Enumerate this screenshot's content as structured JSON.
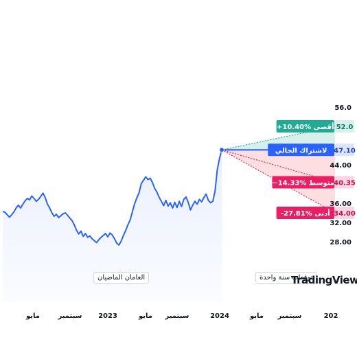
{
  "chart_data": {
    "type": "line",
    "y_ticks": [
      "56.0",
      "52.0",
      "47.10",
      "44.00",
      "40.35",
      "36.00",
      "34.00",
      "32.00",
      "28.00"
    ],
    "ylim": [
      24,
      57
    ],
    "x_ticks": [
      "مايو",
      "سبتمبر",
      "2023",
      "مايو",
      "سبتمبر",
      "2024",
      "مايو",
      "سبتمبر",
      "202"
    ],
    "period_labels": {
      "history": "العامان الماضيان",
      "forecast": "توقعات سنة واحدة"
    },
    "current": {
      "label": "لاشتراك الحالي",
      "value": 47.1,
      "display": "47.10"
    },
    "forecast": [
      {
        "name": "high",
        "label": "+10.40% أقصى",
        "value": 52.0,
        "display": "52.0",
        "color": "#22ab94"
      },
      {
        "name": "avg",
        "label": "−14.33% متوسط",
        "value": 40.35,
        "display": "40.35",
        "color": "#e91e63"
      },
      {
        "name": "low",
        "label": "-27.81% أدنى",
        "value": 34.0,
        "display": "34.00",
        "color": "#e91e63"
      }
    ],
    "series": [
      {
        "values": [
          34.3,
          34.1,
          33.6,
          33.1,
          33.6,
          34.2,
          35.0,
          35.6,
          35.0,
          35.8,
          36.5,
          37.0,
          36.7,
          37.5,
          37.0,
          36.4,
          36.8,
          37.4,
          38.1,
          37.2,
          35.8,
          35.0,
          34.0,
          33.3,
          33.7,
          33.0,
          33.4,
          33.8,
          34.0,
          33.5,
          32.9,
          32.4,
          31.5,
          30.4,
          29.6,
          30.2,
          29.1,
          29.7,
          28.9,
          29.2,
          28.6,
          28.2,
          27.8,
          28.4,
          28.9,
          29.3,
          29.7,
          29.0,
          29.8,
          29.4,
          28.6,
          27.7,
          27.3,
          28.1,
          29.3,
          30.3,
          31.5,
          32.5,
          34.2,
          35.9,
          37.1,
          38.2,
          40.1,
          40.8,
          41.5,
          40.9,
          41.2,
          40.3,
          39.1,
          38.3,
          37.2,
          36.4,
          35.5,
          36.6,
          35.4,
          36.1,
          35.0,
          36.2,
          35.1,
          36.4,
          35.3,
          36.8,
          37.3,
          36.2,
          34.6,
          35.6,
          36.4,
          35.8,
          36.8,
          36.3,
          37.2,
          37.9,
          36.6,
          36.1,
          36.4,
          38.5,
          43.0,
          45.3,
          47.1
        ]
      }
    ],
    "brand": "TradingView",
    "brand_mark": "17"
  }
}
